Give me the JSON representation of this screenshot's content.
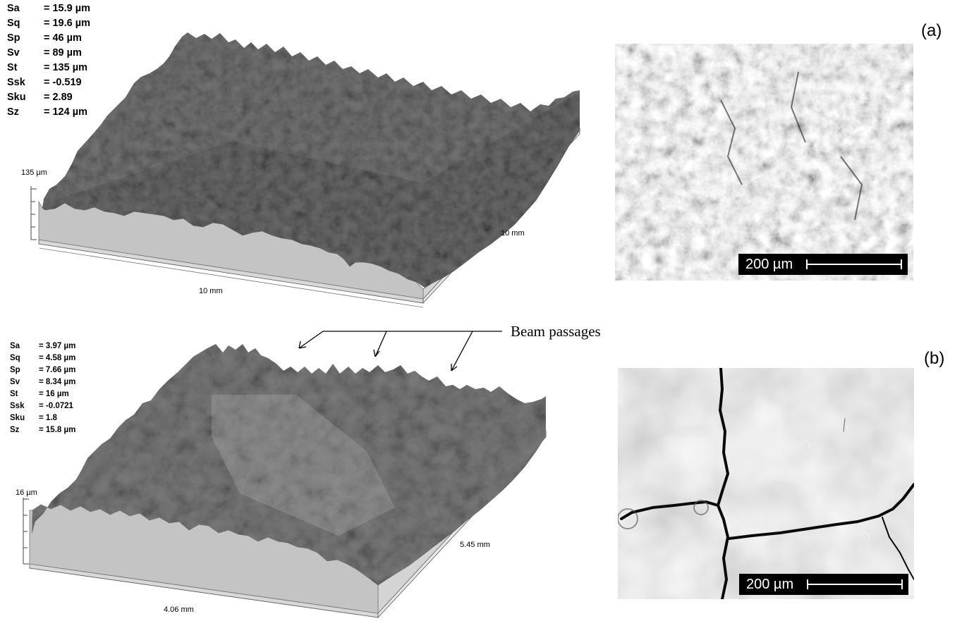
{
  "panel_a": {
    "label": "(a)",
    "stats": [
      {
        "key": "Sa",
        "value": "= 15.9 µm"
      },
      {
        "key": "Sq",
        "value": "= 19.6 µm"
      },
      {
        "key": "Sp",
        "value": "= 46 µm"
      },
      {
        "key": "Sv",
        "value": "= 89 µm"
      },
      {
        "key": "St",
        "value": "= 135 µm"
      },
      {
        "key": "Ssk",
        "value": "= -0.519"
      },
      {
        "key": "Sku",
        "value": "= 2.89"
      },
      {
        "key": "Sz",
        "value": "= 124 µm"
      }
    ],
    "height_label": "135 µm",
    "x_axis_label": "10 mm",
    "y_axis_label": "10 mm",
    "scale_bar": "200 µm"
  },
  "panel_b": {
    "label": "(b)",
    "stats": [
      {
        "key": "Sa",
        "value": "= 3.97 µm"
      },
      {
        "key": "Sq",
        "value": "= 4.58 µm"
      },
      {
        "key": "Sp",
        "value": "= 7.66 µm"
      },
      {
        "key": "Sv",
        "value": "= 8.34 µm"
      },
      {
        "key": "St",
        "value": "= 16 µm"
      },
      {
        "key": "Ssk",
        "value": "= -0.0721"
      },
      {
        "key": "Sku",
        "value": "= 1.8"
      },
      {
        "key": "Sz",
        "value": "= 15.8 µm"
      }
    ],
    "height_label": "16 µm",
    "x_axis_label": "4.06 mm",
    "y_axis_label": "5.45 mm",
    "annotation": "Beam passages",
    "scale_bar": "200 µm"
  }
}
